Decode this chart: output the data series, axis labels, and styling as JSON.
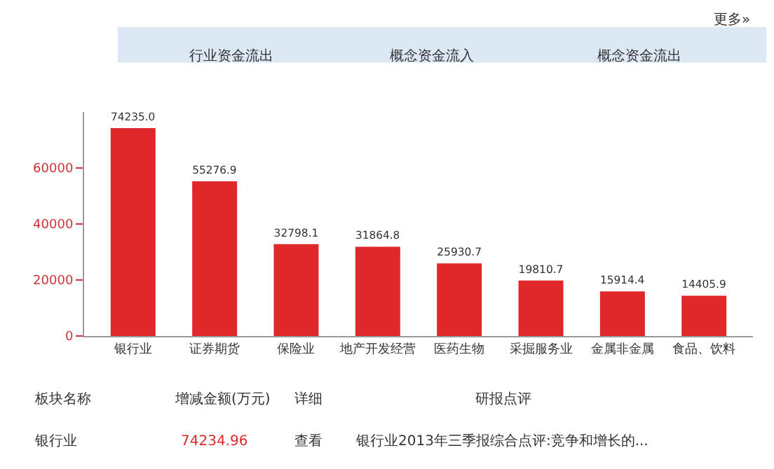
{
  "chart_data": {
    "type": "bar",
    "categories": [
      "银行业",
      "证券期货",
      "保险业",
      "地产开发经营",
      "医药生物",
      "采掘服务业",
      "金属非金属",
      "食品、饮料"
    ],
    "values": [
      74235.0,
      55276.9,
      32798.1,
      31864.8,
      25930.7,
      19810.7,
      15914.4,
      14405.9
    ],
    "color": "#e0282a",
    "ylim": [
      0,
      80000
    ],
    "yticks": [
      0,
      20000,
      40000,
      60000
    ],
    "value_labels": [
      "74235.0",
      "55276.9",
      "32798.1",
      "31864.8",
      "25930.7",
      "19810.7",
      "15914.4",
      "14405.9"
    ],
    "annotations": [
      "行业资金流出",
      "概念资金流入",
      "概念资金流出",
      "更多»",
      "板块名称",
      "增减金额(万元)",
      "详细",
      "研报点评",
      "银行业",
      "74234.96",
      "查看",
      "银行业2013年三季报综合点评:竞争和增长的..."
    ]
  }
}
